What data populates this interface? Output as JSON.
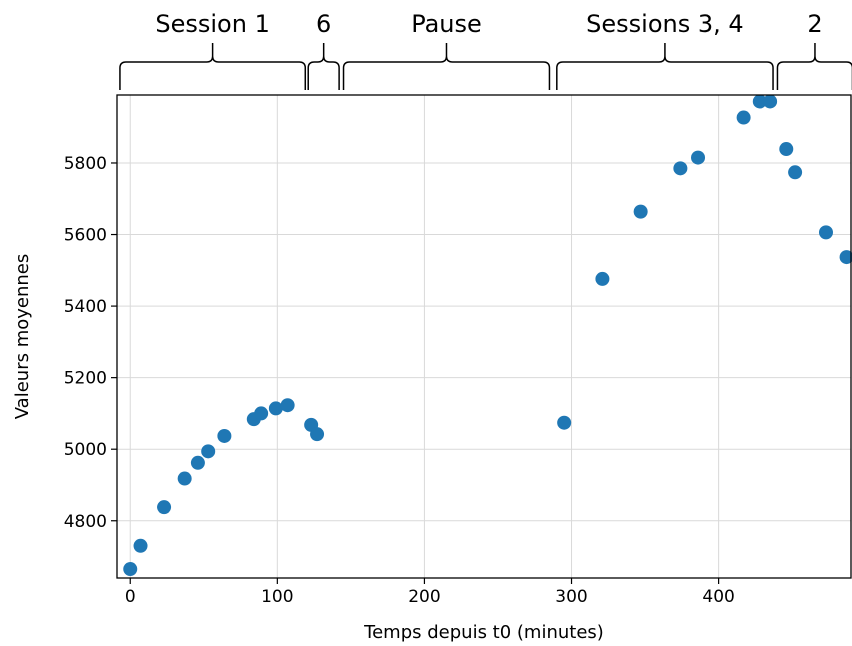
{
  "chart_data": {
    "type": "scatter",
    "xlabel": "Temps depuis t0 (minutes)",
    "ylabel": "Valeurs moyennes",
    "xlim": [
      -9,
      490
    ],
    "ylim": [
      4640,
      5990
    ],
    "x_ticks": [
      0,
      100,
      200,
      300,
      400
    ],
    "y_ticks": [
      4800,
      5000,
      5200,
      5400,
      5600,
      5800
    ],
    "grid": true,
    "marker_color": "#1f77b4",
    "points": [
      {
        "x": 0,
        "y": 4665
      },
      {
        "x": 7,
        "y": 4730
      },
      {
        "x": 23,
        "y": 4838
      },
      {
        "x": 37,
        "y": 4918
      },
      {
        "x": 46,
        "y": 4962
      },
      {
        "x": 53,
        "y": 4994
      },
      {
        "x": 64,
        "y": 5037
      },
      {
        "x": 84,
        "y": 5084
      },
      {
        "x": 89,
        "y": 5100
      },
      {
        "x": 99,
        "y": 5114
      },
      {
        "x": 107,
        "y": 5123
      },
      {
        "x": 123,
        "y": 5068
      },
      {
        "x": 127,
        "y": 5042
      },
      {
        "x": 295,
        "y": 5074
      },
      {
        "x": 321,
        "y": 5476
      },
      {
        "x": 347,
        "y": 5664
      },
      {
        "x": 374,
        "y": 5785
      },
      {
        "x": 386,
        "y": 5815
      },
      {
        "x": 417,
        "y": 5927
      },
      {
        "x": 428,
        "y": 5972
      },
      {
        "x": 435,
        "y": 5972
      },
      {
        "x": 446,
        "y": 5839
      },
      {
        "x": 452,
        "y": 5774
      },
      {
        "x": 473,
        "y": 5606
      },
      {
        "x": 487,
        "y": 5537
      }
    ],
    "annotations": [
      {
        "label": "Session 1",
        "x_start": -7,
        "x_end": 119
      },
      {
        "label": "6",
        "x_start": 121,
        "x_end": 142
      },
      {
        "label": "Pause",
        "x_start": 145,
        "x_end": 285
      },
      {
        "label": "Sessions 3, 4",
        "x_start": 290,
        "x_end": 437
      },
      {
        "label": "2",
        "x_start": 440,
        "x_end": 491
      }
    ]
  }
}
